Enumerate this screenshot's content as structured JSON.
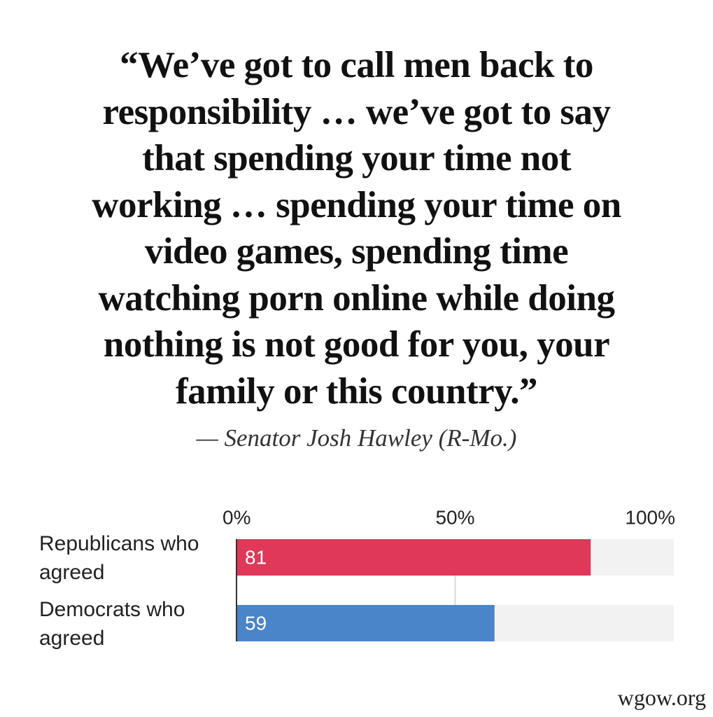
{
  "quote": {
    "lines": [
      "“We’ve got to call men back to",
      "responsibility … we’ve got to say",
      "that spending your time not",
      "working … spending your time on",
      "video games, spending time",
      "watching porn online while doing",
      "nothing is not good for you, your",
      "family or this country.”"
    ],
    "attribution": "— Senator Josh Hawley (R-Mo.)"
  },
  "chart_data": {
    "type": "bar",
    "orientation": "horizontal",
    "categories": [
      "Republicans who agreed",
      "Democrats who agreed"
    ],
    "values": [
      81,
      59
    ],
    "colors": [
      "#df3858",
      "#4a84c9"
    ],
    "xlim": [
      0,
      100
    ],
    "xticks": [
      {
        "value": 0,
        "label": "0%"
      },
      {
        "value": 50,
        "label": "50%"
      },
      {
        "value": 100,
        "label": "100%"
      }
    ],
    "grid": true
  },
  "watermark": "wgow.org"
}
